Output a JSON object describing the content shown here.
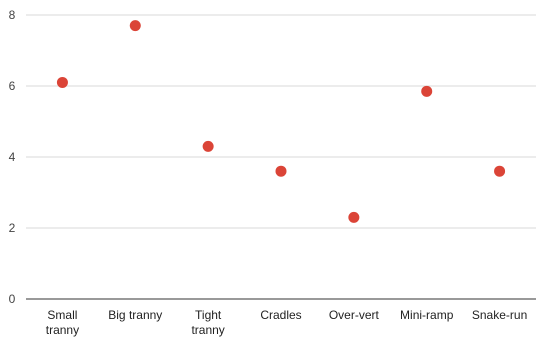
{
  "chart_data": {
    "type": "scatter",
    "title": "",
    "xlabel": "",
    "ylabel": "",
    "categories": [
      "Small tranny",
      "Big tranny",
      "Tight tranny",
      "Cradles",
      "Over-vert",
      "Mini-ramp",
      "Snake-run"
    ],
    "category_lines": [
      [
        "Small",
        "tranny"
      ],
      [
        "Big tranny"
      ],
      [
        "Tight",
        "tranny"
      ],
      [
        "Cradles"
      ],
      [
        "Over-vert"
      ],
      [
        "Mini-ramp"
      ],
      [
        "Snake-run"
      ]
    ],
    "series": [
      {
        "values": [
          6.1,
          7.7,
          4.3,
          3.6,
          2.3,
          5.85,
          3.6
        ]
      }
    ],
    "ylim": [
      0,
      8
    ],
    "yticks": [
      0,
      2,
      4,
      6,
      8
    ],
    "grid": true,
    "legend": "none",
    "colors": {
      "point": "#db4437",
      "grid": "#d9d9d9",
      "axis": "#333333"
    }
  }
}
